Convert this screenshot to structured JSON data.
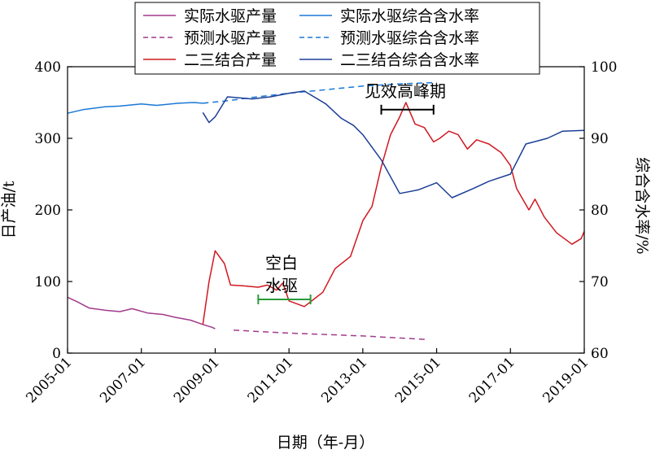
{
  "chart_data": {
    "type": "line",
    "x_axis": {
      "label": "日期（年-月）",
      "range": [
        "2005-01",
        "2019-01"
      ],
      "ticks": [
        "2005-01",
        "2007-01",
        "2009-01",
        "2011-01",
        "2013-01",
        "2015-01",
        "2017-01",
        "2019-01"
      ]
    },
    "y_left": {
      "label": "日产油/t",
      "range": [
        0,
        400
      ],
      "ticks": [
        0,
        100,
        200,
        300,
        400
      ]
    },
    "y_right": {
      "label": "综合含水率/%",
      "range": [
        60,
        100
      ],
      "ticks": [
        60,
        70,
        80,
        90,
        100
      ]
    },
    "legend": {
      "placement": "top",
      "columns": 2
    },
    "series": [
      {
        "name": "实际水驱产量",
        "axis": "left",
        "color": "#a23a8c",
        "dash": "solid",
        "points": [
          [
            "2005-01",
            78
          ],
          [
            "2005-04",
            72
          ],
          [
            "2005-08",
            63
          ],
          [
            "2006-01",
            60
          ],
          [
            "2006-06",
            58
          ],
          [
            "2006-10",
            62
          ],
          [
            "2007-03",
            56
          ],
          [
            "2007-08",
            54
          ],
          [
            "2007-12",
            50
          ],
          [
            "2008-05",
            46
          ],
          [
            "2008-09",
            40
          ],
          [
            "2008-12",
            36
          ],
          [
            "2009-01",
            34
          ]
        ]
      },
      {
        "name": "预测水驱产量",
        "axis": "left",
        "color": "#a23a8c",
        "dash": "dashed",
        "points": [
          [
            "2009-07",
            32
          ],
          [
            "2011-01",
            28
          ],
          [
            "2013-01",
            24
          ],
          [
            "2014-10",
            19
          ]
        ]
      },
      {
        "name": "二三结合产量",
        "axis": "left",
        "color": "#d01820",
        "dash": "solid",
        "points": [
          [
            "2008-09",
            40
          ],
          [
            "2008-11",
            100
          ],
          [
            "2009-01",
            143
          ],
          [
            "2009-04",
            125
          ],
          [
            "2009-06",
            95
          ],
          [
            "2009-10",
            94
          ],
          [
            "2010-03",
            92
          ],
          [
            "2010-06",
            95
          ],
          [
            "2010-09",
            88
          ],
          [
            "2010-11",
            98
          ],
          [
            "2011-01",
            73
          ],
          [
            "2011-06",
            65
          ],
          [
            "2011-12",
            85
          ],
          [
            "2012-04",
            118
          ],
          [
            "2012-09",
            135
          ],
          [
            "2013-01",
            185
          ],
          [
            "2013-04",
            205
          ],
          [
            "2013-07",
            260
          ],
          [
            "2013-10",
            305
          ],
          [
            "2014-01",
            330
          ],
          [
            "2014-03",
            350
          ],
          [
            "2014-06",
            320
          ],
          [
            "2014-09",
            315
          ],
          [
            "2014-12",
            295
          ],
          [
            "2015-02",
            300
          ],
          [
            "2015-05",
            310
          ],
          [
            "2015-08",
            305
          ],
          [
            "2015-11",
            285
          ],
          [
            "2016-02",
            298
          ],
          [
            "2016-06",
            292
          ],
          [
            "2016-10",
            280
          ],
          [
            "2017-01",
            262
          ],
          [
            "2017-03",
            230
          ],
          [
            "2017-07",
            200
          ],
          [
            "2017-09",
            215
          ],
          [
            "2017-12",
            190
          ],
          [
            "2018-04",
            168
          ],
          [
            "2018-09",
            152
          ],
          [
            "2018-12",
            160
          ],
          [
            "2019-01",
            170
          ]
        ]
      },
      {
        "name": "实际水驱综合含水率",
        "axis": "right",
        "color": "#1a78d6",
        "dash": "solid",
        "points": [
          [
            "2005-01",
            93.5
          ],
          [
            "2005-06",
            94.0
          ],
          [
            "2006-01",
            94.4
          ],
          [
            "2006-06",
            94.5
          ],
          [
            "2007-01",
            94.8
          ],
          [
            "2007-06",
            94.6
          ],
          [
            "2008-01",
            94.9
          ],
          [
            "2008-06",
            95.0
          ],
          [
            "2008-09",
            94.9
          ]
        ]
      },
      {
        "name": "预测水驱综合含水率",
        "axis": "right",
        "color": "#1a78d6",
        "dash": "dashed",
        "points": [
          [
            "2008-09",
            94.9
          ],
          [
            "2009-06",
            95.3
          ],
          [
            "2010-01",
            95.7
          ],
          [
            "2011-01",
            96.3
          ],
          [
            "2012-01",
            96.8
          ],
          [
            "2013-01",
            97.3
          ],
          [
            "2014-01",
            97.6
          ],
          [
            "2015-01",
            97.8
          ]
        ]
      },
      {
        "name": "二三结合综合含水率",
        "axis": "right",
        "color": "#1c3f96",
        "dash": "solid",
        "points": [
          [
            "2008-09",
            93.6
          ],
          [
            "2008-11",
            92.2
          ],
          [
            "2009-01",
            93.0
          ],
          [
            "2009-05",
            95.8
          ],
          [
            "2010-01",
            95.5
          ],
          [
            "2010-07",
            95.8
          ],
          [
            "2011-01",
            96.3
          ],
          [
            "2011-06",
            96.6
          ],
          [
            "2012-01",
            94.8
          ],
          [
            "2012-06",
            92.8
          ],
          [
            "2012-10",
            91.8
          ],
          [
            "2013-01",
            90.5
          ],
          [
            "2013-07",
            87.0
          ],
          [
            "2014-01",
            82.3
          ],
          [
            "2014-07",
            82.8
          ],
          [
            "2015-01",
            83.8
          ],
          [
            "2015-06",
            81.7
          ],
          [
            "2016-01",
            83.0
          ],
          [
            "2016-06",
            84.0
          ],
          [
            "2017-01",
            85.0
          ],
          [
            "2017-06",
            89.2
          ],
          [
            "2018-01",
            90.0
          ],
          [
            "2018-06",
            91.0
          ],
          [
            "2019-01",
            91.1
          ]
        ]
      }
    ],
    "annotations": [
      {
        "label": "空白",
        "color": "#000000"
      },
      {
        "label": "水驱",
        "color": "#000000",
        "bracket": {
          "from": "2010-03",
          "to": "2011-08",
          "level": 75,
          "axis": "left",
          "color": "#2a9a3a"
        }
      },
      {
        "label": "见效高峰期",
        "color": "#000000",
        "bracket": {
          "from": "2013-07",
          "to": "2014-12",
          "level": 340,
          "axis": "left",
          "color": "#000000"
        }
      }
    ]
  }
}
